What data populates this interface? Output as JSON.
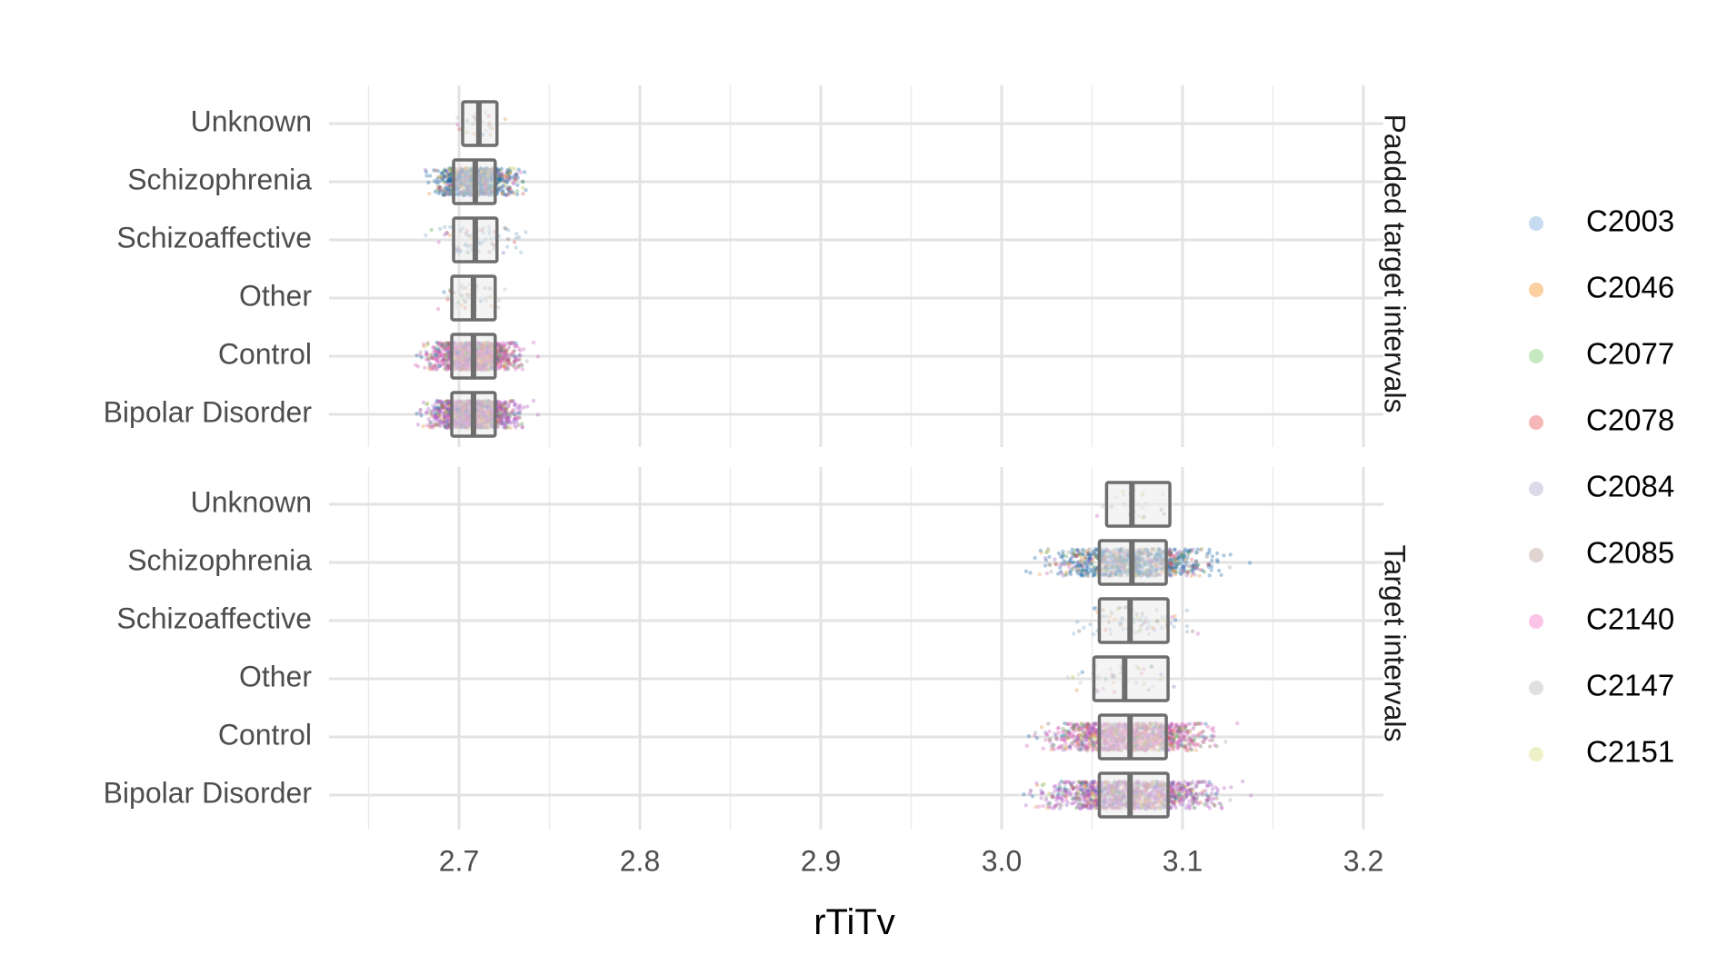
{
  "chart_data": {
    "type": "box",
    "xlabel": "rTiTv",
    "ylabel": "",
    "xlim": [
      2.625,
      3.21
    ],
    "xticks": [
      2.7,
      2.8,
      2.9,
      3.0,
      3.1,
      3.2
    ],
    "xtick_labels": [
      "2.7",
      "2.8",
      "2.9",
      "3.0",
      "3.1",
      "3.2"
    ],
    "categories": [
      "Unknown",
      "Schizophrenia",
      "Schizoaffective",
      "Other",
      "Control",
      "Bipolar Disorder"
    ],
    "grid": true,
    "legend_position": "right",
    "legend": [
      {
        "name": "C2003",
        "color": "#c6dbef"
      },
      {
        "name": "C2046",
        "color": "#fdd0a2"
      },
      {
        "name": "C2077",
        "color": "#c7e9c0"
      },
      {
        "name": "C2078",
        "color": "#f4b6b6"
      },
      {
        "name": "C2084",
        "color": "#dadaeb"
      },
      {
        "name": "C2085",
        "color": "#e0d4d0"
      },
      {
        "name": "C2140",
        "color": "#fbc4e6"
      },
      {
        "name": "C2147",
        "color": "#e0e0e0"
      },
      {
        "name": "C2151",
        "color": "#eef0c8"
      }
    ],
    "panels": [
      {
        "strip_label": "Padded target intervals",
        "boxes": [
          {
            "category": "Unknown",
            "q1": 2.702,
            "median": 2.711,
            "q3": 2.721,
            "whisker_low": 2.702,
            "whisker_high": 2.721,
            "points_min": 2.68,
            "points_max": 2.75,
            "point_count": 25,
            "main_color": "#bdbdbd"
          },
          {
            "category": "Schizophrenia",
            "q1": 2.697,
            "median": 2.709,
            "q3": 2.72,
            "whisker_low": 2.697,
            "whisker_high": 2.72,
            "points_min": 2.66,
            "points_max": 2.762,
            "point_count": 900,
            "main_color": "#1f6aa8"
          },
          {
            "category": "Schizoaffective",
            "q1": 2.697,
            "median": 2.709,
            "q3": 2.721,
            "whisker_low": 2.697,
            "whisker_high": 2.721,
            "points_min": 2.655,
            "points_max": 2.76,
            "point_count": 80,
            "main_color": "#7aa5c7"
          },
          {
            "category": "Other",
            "q1": 2.696,
            "median": 2.708,
            "q3": 2.72,
            "whisker_low": 2.696,
            "whisker_high": 2.72,
            "points_min": 2.665,
            "points_max": 2.75,
            "point_count": 50,
            "main_color": "#bdbdbd"
          },
          {
            "category": "Control",
            "q1": 2.696,
            "median": 2.708,
            "q3": 2.72,
            "whisker_low": 2.696,
            "whisker_high": 2.72,
            "points_min": 2.65,
            "points_max": 2.762,
            "point_count": 1200,
            "main_color": "#d35fb7"
          },
          {
            "category": "Bipolar Disorder",
            "q1": 2.696,
            "median": 2.708,
            "q3": 2.72,
            "whisker_low": 2.696,
            "whisker_high": 2.72,
            "points_min": 2.65,
            "points_max": 2.762,
            "point_count": 1200,
            "main_color": "#b05cc6"
          }
        ]
      },
      {
        "strip_label": "Target intervals",
        "boxes": [
          {
            "category": "Unknown",
            "q1": 3.058,
            "median": 3.072,
            "q3": 3.093,
            "whisker_low": 3.058,
            "whisker_high": 3.093,
            "points_min": 3.035,
            "points_max": 3.115,
            "point_count": 25,
            "main_color": "#bdbdbd"
          },
          {
            "category": "Schizophrenia",
            "q1": 3.054,
            "median": 3.072,
            "q3": 3.091,
            "whisker_low": 3.054,
            "whisker_high": 3.091,
            "points_min": 2.96,
            "points_max": 3.165,
            "point_count": 900,
            "main_color": "#1f6aa8"
          },
          {
            "category": "Schizoaffective",
            "q1": 3.054,
            "median": 3.071,
            "q3": 3.092,
            "whisker_low": 3.054,
            "whisker_high": 3.092,
            "points_min": 3.005,
            "points_max": 3.16,
            "point_count": 80,
            "main_color": "#7aa5c7"
          },
          {
            "category": "Other",
            "q1": 3.051,
            "median": 3.068,
            "q3": 3.092,
            "whisker_low": 3.051,
            "whisker_high": 3.092,
            "points_min": 3.005,
            "points_max": 3.14,
            "point_count": 50,
            "main_color": "#bdbdbd"
          },
          {
            "category": "Control",
            "q1": 3.054,
            "median": 3.071,
            "q3": 3.091,
            "whisker_low": 3.054,
            "whisker_high": 3.091,
            "points_min": 2.975,
            "points_max": 3.175,
            "point_count": 1200,
            "main_color": "#d35fb7"
          },
          {
            "category": "Bipolar Disorder",
            "q1": 3.054,
            "median": 3.071,
            "q3": 3.092,
            "whisker_low": 3.054,
            "whisker_high": 3.092,
            "points_min": 2.97,
            "points_max": 3.18,
            "point_count": 1200,
            "main_color": "#b05cc6"
          }
        ]
      }
    ]
  }
}
